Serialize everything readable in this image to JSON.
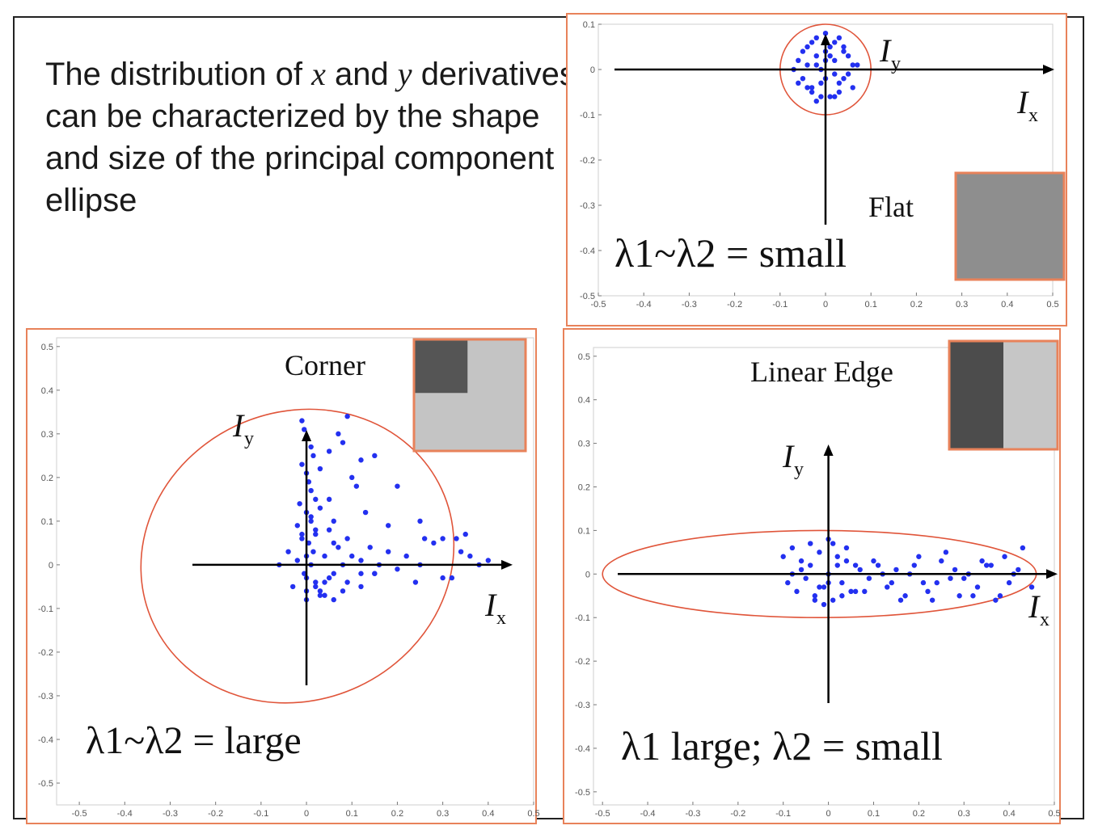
{
  "slide": {
    "intro_1": "The distribution of ",
    "intro_x": "x",
    "intro_2": " and ",
    "intro_y": "y",
    "intro_3": "derivatives can be characterized by the shape and size of the principal component ellipse"
  },
  "colors": {
    "points": "#2330f0",
    "ellipse": "#e0553a",
    "panel_border": "#e8825a",
    "axis": "#000000"
  },
  "chart_data": [
    {
      "type": "scatter",
      "title": "Flat",
      "caption": "λ1~λ2 = small",
      "xaxis_label": "I",
      "xaxis_sub": "x",
      "yaxis_label": "I",
      "yaxis_sub": "y",
      "x_ticks": [
        "-0.5",
        "-0.4",
        "-0.3",
        "-0.2",
        "-0.1",
        "0",
        "0.1",
        "0.2",
        "0.3",
        "0.4",
        "0.5"
      ],
      "y_ticks": [
        "0.1",
        "0",
        "-0.1",
        "-0.2",
        "-0.3",
        "-0.4",
        "-0.5"
      ],
      "xlim": [
        -0.5,
        0.5
      ],
      "ylim": [
        -0.5,
        0.1
      ],
      "grid": false,
      "ellipse": {
        "cx": 0.0,
        "cy": 0.0,
        "rx": 0.1,
        "ry": 0.1
      },
      "points_x": [
        -0.06,
        -0.04,
        -0.02,
        0,
        0.02,
        0.04,
        0.06,
        -0.05,
        -0.03,
        -0.01,
        0.01,
        0.03,
        0.05,
        -0.04,
        -0.02,
        0,
        0.02,
        0.04,
        -0.03,
        -0.01,
        0.01,
        0.03,
        -0.06,
        0.06,
        -0.02,
        0.02,
        0,
        -0.05,
        0.05,
        -0.03,
        0.03,
        -0.07,
        0.07,
        -0.01,
        0.01,
        -0.04,
        0.04,
        0,
        -0.02,
        0.02
      ],
      "points_y": [
        0.02,
        0.05,
        0.07,
        0.08,
        0.06,
        0.04,
        0.01,
        -0.02,
        -0.04,
        -0.06,
        -0.06,
        -0.03,
        -0.01,
        0.01,
        0.03,
        0.04,
        0.02,
        -0.02,
        -0.05,
        0.0,
        0.03,
        0.07,
        -0.03,
        -0.04,
        -0.07,
        -0.06,
        -0.02,
        0.04,
        0.03,
        0.06,
        -0.05,
        0.0,
        0.01,
        -0.03,
        0.05,
        -0.04,
        0.05,
        0.02,
        0.01,
        -0.01
      ],
      "swatch": {
        "type": "uniform",
        "fill": "#8e8e8e"
      }
    },
    {
      "type": "scatter",
      "title": "Corner",
      "caption": "λ1~λ2 = large",
      "xaxis_label": "I",
      "xaxis_sub": "x",
      "yaxis_label": "I",
      "yaxis_sub": "y",
      "x_ticks": [
        "-0.5",
        "-0.4",
        "-0.3",
        "-0.2",
        "-0.1",
        "0",
        "0.1",
        "0.2",
        "0.3",
        "0.4",
        "0.5"
      ],
      "y_ticks": [
        "0.5",
        "0.4",
        "0.3",
        "0.2",
        "0.1",
        "0",
        "-0.1",
        "-0.2",
        "-0.3",
        "-0.4",
        "-0.5"
      ],
      "xlim": [
        -0.55,
        0.5
      ],
      "ylim": [
        -0.55,
        0.52
      ],
      "grid": false,
      "ellipse": {
        "cx": -0.02,
        "cy": 0.02,
        "rx": 0.35,
        "ry": 0.33,
        "rotate": -25
      },
      "points_x": [
        -0.01,
        -0.005,
        0.0,
        0.01,
        0.015,
        -0.01,
        0.0,
        0.005,
        0.01,
        0.02,
        -0.015,
        0.0,
        0.01,
        0.02,
        -0.01,
        0.005,
        0.015,
        0.0,
        0.01,
        -0.005,
        0.02,
        0.03,
        -0.02,
        0.0,
        0.04,
        0.05,
        -0.03,
        0.06,
        0.02,
        0.08,
        0.1,
        0.12,
        0.14,
        0.16,
        0.18,
        0.2,
        0.22,
        0.25,
        0.28,
        0.3,
        0.33,
        0.36,
        0.4,
        0.03,
        0.05,
        0.07,
        0.09,
        0.11,
        0.13,
        0.06,
        0.09,
        0.12,
        0.15,
        0.04,
        0.08,
        -0.02,
        -0.04,
        -0.06,
        0.0,
        0.02,
        0.04,
        0.06,
        -0.01,
        0.01,
        0.03,
        0.05,
        0.07,
        0.0,
        0.03,
        0.06,
        0.09,
        0.12,
        0.15,
        0.05,
        0.1,
        0.15,
        0.2,
        0.25,
        0.3,
        0.35,
        0.38,
        0.24,
        0.18,
        0.26,
        0.32,
        0.34,
        0.12,
        0.08
      ],
      "points_y": [
        0.33,
        0.31,
        0.29,
        0.27,
        0.25,
        0.23,
        0.21,
        0.19,
        0.17,
        0.15,
        0.14,
        0.12,
        0.1,
        0.08,
        0.06,
        0.05,
        0.03,
        0.02,
        0.0,
        -0.02,
        -0.04,
        -0.06,
        0.01,
        -0.08,
        0.02,
        -0.03,
        -0.05,
        0.05,
        0.07,
        0.0,
        0.02,
        -0.02,
        0.04,
        0.0,
        0.03,
        -0.01,
        0.02,
        0.0,
        0.05,
        -0.03,
        0.06,
        0.02,
        0.01,
        0.22,
        0.26,
        0.3,
        0.34,
        0.18,
        0.12,
        0.1,
        0.06,
        0.01,
        -0.02,
        -0.07,
        -0.06,
        0.09,
        0.03,
        0.0,
        -0.03,
        -0.05,
        -0.04,
        -0.02,
        0.07,
        0.11,
        0.13,
        0.08,
        0.04,
        -0.06,
        -0.07,
        -0.08,
        -0.04,
        -0.05,
        -0.02,
        0.15,
        0.2,
        0.25,
        0.18,
        0.1,
        0.06,
        0.07,
        0.0,
        -0.04,
        0.09,
        0.06,
        -0.03,
        0.03,
        0.24,
        0.28
      ],
      "swatch": {
        "type": "corner",
        "dark": "#555555",
        "light": "#c4c4c4"
      }
    },
    {
      "type": "scatter",
      "title": "Linear Edge",
      "caption": "λ1 large; λ2 = small",
      "xaxis_label": "I",
      "xaxis_sub": "x",
      "yaxis_label": "I",
      "yaxis_sub": "y",
      "x_ticks": [
        "-0.5",
        "-0.4",
        "-0.3",
        "-0.2",
        "-0.1",
        "0",
        "0.1",
        "0.2",
        "0.3",
        "0.4",
        "0.5"
      ],
      "y_ticks": [
        "0.5",
        "0.4",
        "0.3",
        "0.2",
        "0.1",
        "0",
        "-0.1",
        "-0.2",
        "-0.3",
        "-0.4",
        "-0.5"
      ],
      "xlim": [
        -0.52,
        0.5
      ],
      "ylim": [
        -0.53,
        0.52
      ],
      "grid": false,
      "ellipse": {
        "cx": -0.02,
        "cy": 0.0,
        "rx": 0.48,
        "ry": 0.1,
        "rotate": 0
      },
      "points_x": [
        -0.1,
        -0.08,
        -0.06,
        -0.04,
        -0.02,
        0.0,
        0.02,
        0.04,
        0.06,
        -0.09,
        -0.07,
        -0.05,
        -0.03,
        -0.01,
        0.01,
        0.03,
        0.05,
        0.07,
        0.09,
        0.11,
        0.13,
        0.15,
        0.17,
        0.19,
        0.21,
        0.23,
        0.25,
        0.27,
        0.29,
        0.31,
        0.33,
        0.35,
        0.37,
        0.39,
        0.41,
        0.43,
        0.45,
        -0.08,
        -0.04,
        0.0,
        0.04,
        0.08,
        0.12,
        0.16,
        0.2,
        0.24,
        0.28,
        0.32,
        0.36,
        0.4,
        -0.06,
        -0.02,
        0.02,
        0.06,
        0.1,
        0.14,
        0.18,
        0.22,
        0.26,
        0.3,
        0.34,
        0.38,
        0.42,
        0.0,
        -0.03,
        0.03,
        0.01,
        -0.01
      ],
      "points_y": [
        0.04,
        0.06,
        0.03,
        0.07,
        0.05,
        0.08,
        0.04,
        0.06,
        0.02,
        -0.02,
        -0.04,
        -0.01,
        -0.05,
        -0.03,
        -0.06,
        -0.02,
        -0.04,
        0.01,
        -0.01,
        0.02,
        -0.03,
        0.01,
        -0.05,
        0.02,
        -0.02,
        -0.06,
        0.03,
        -0.01,
        -0.05,
        0.0,
        -0.03,
        0.02,
        -0.06,
        0.04,
        0.0,
        0.06,
        -0.03,
        0.0,
        0.02,
        -0.02,
        0.03,
        -0.04,
        0.0,
        -0.06,
        0.04,
        -0.02,
        0.01,
        -0.05,
        0.02,
        -0.02,
        0.01,
        -0.03,
        0.02,
        -0.04,
        0.03,
        -0.02,
        0.0,
        -0.04,
        0.05,
        -0.01,
        0.03,
        -0.05,
        0.01,
        0.0,
        -0.06,
        -0.05,
        0.07,
        -0.07
      ],
      "swatch": {
        "type": "edge",
        "dark": "#4c4c4c",
        "light": "#c6c6c6"
      }
    }
  ]
}
